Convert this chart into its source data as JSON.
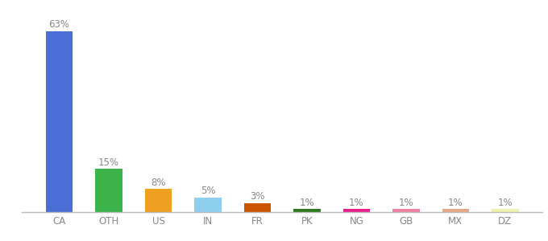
{
  "categories": [
    "CA",
    "OTH",
    "US",
    "IN",
    "FR",
    "PK",
    "NG",
    "GB",
    "MX",
    "DZ"
  ],
  "values": [
    63,
    15,
    8,
    5,
    3,
    1,
    1,
    1,
    1,
    1
  ],
  "labels": [
    "63%",
    "15%",
    "8%",
    "5%",
    "3%",
    "1%",
    "1%",
    "1%",
    "1%",
    "1%"
  ],
  "colors": [
    "#4a6fd4",
    "#3cb44a",
    "#f0a020",
    "#8ecfee",
    "#cc5500",
    "#2d7a20",
    "#e8208c",
    "#f080a0",
    "#e8a888",
    "#f0f0b0"
  ],
  "background_color": "#ffffff",
  "ylim": [
    0,
    68
  ],
  "label_fontsize": 8.5,
  "tick_fontsize": 8.5,
  "bar_width": 0.55
}
